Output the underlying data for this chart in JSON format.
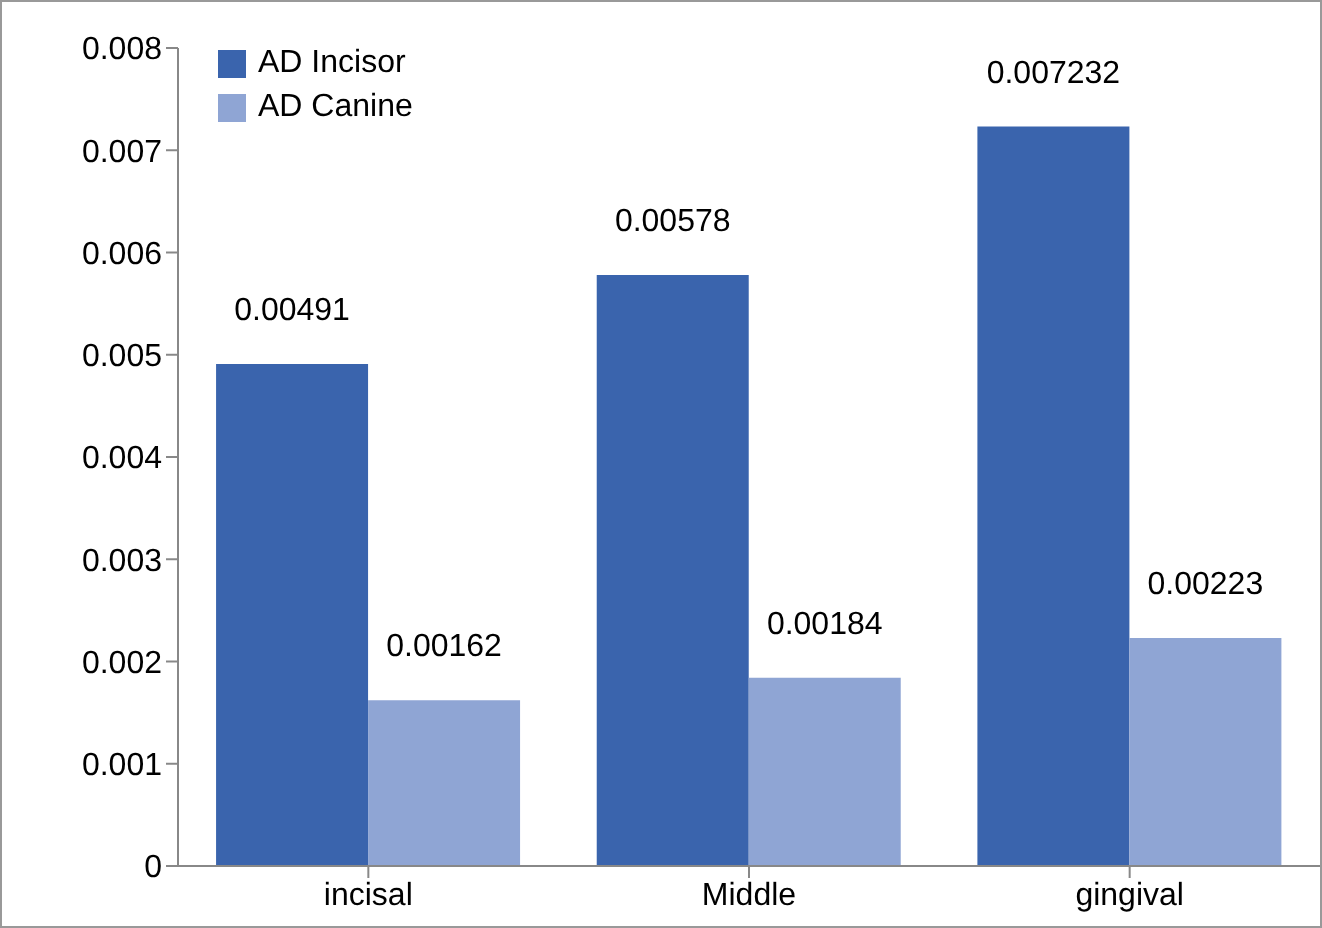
{
  "chart_data": {
    "type": "bar",
    "categories": [
      "incisal",
      "Middle",
      "gingival"
    ],
    "series": [
      {
        "name": "AD Incisor",
        "color": "#3a64ad",
        "values": [
          0.00491,
          0.00578,
          0.007232
        ]
      },
      {
        "name": "AD Canine",
        "color": "#8fa5d4",
        "values": [
          0.00162,
          0.00184,
          0.00223
        ]
      }
    ],
    "ylim": [
      0,
      0.008
    ],
    "yticks": [
      0,
      0.001,
      0.002,
      0.003,
      0.004,
      0.005,
      0.006,
      0.007,
      0.008
    ],
    "data_labels": true,
    "legend": "top left",
    "grid": false
  }
}
